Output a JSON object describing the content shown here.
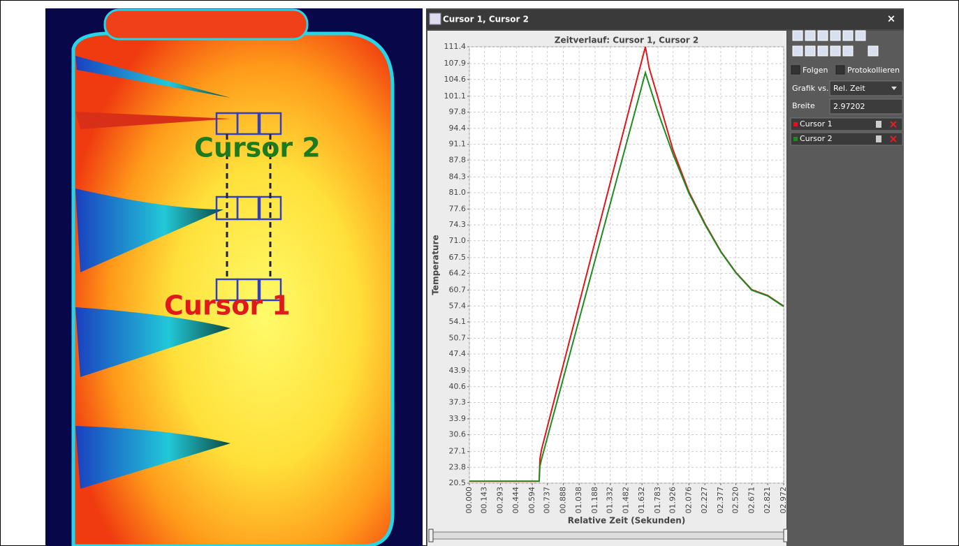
{
  "window": {
    "title": "Cursor 1, Cursor 2",
    "close": "×"
  },
  "thermal_image": {
    "labels": [
      "Cursor 2",
      "Cursor 1"
    ]
  },
  "panel": {
    "follow": "Folgen",
    "log": "Protokollieren",
    "graph_vs_label": "Grafik vs.",
    "graph_vs_value": "Rel. Zeit",
    "width_label": "Breite",
    "width_value": "2.97202"
  },
  "chart_data": {
    "type": "line",
    "title": "Zeitverlauf: Cursor 1, Cursor 2",
    "x_label": "Relative Zeit (Sekunden)",
    "y_label": "Temperature",
    "x": [
      0,
      0.3,
      0.66,
      0.667,
      0.68,
      0.8,
      1.0,
      1.2,
      1.4,
      1.6,
      1.664,
      1.7,
      1.783,
      1.926,
      2.076,
      2.227,
      2.377,
      2.52,
      2.671,
      2.821,
      2.972
    ],
    "series": [
      {
        "name": "Cursor 1",
        "color": "#e0151b",
        "values": [
          20.9,
          20.9,
          20.9,
          25.5,
          27.3,
          37.6,
          54.7,
          71.8,
          88.9,
          106.0,
          111.4,
          107.0,
          100.8,
          89.9,
          81.2,
          74.6,
          68.8,
          64.4,
          60.8,
          59.6,
          57.4
        ]
      },
      {
        "name": "Cursor 2",
        "color": "#1f8a1f",
        "values": [
          20.9,
          20.9,
          20.9,
          24.0,
          25.3,
          35.1,
          51.5,
          67.9,
          84.3,
          100.7,
          106.0,
          103.5,
          97.8,
          89.0,
          80.9,
          74.4,
          68.7,
          64.3,
          60.7,
          59.5,
          57.3
        ]
      }
    ],
    "xlim": [
      0,
      2.972
    ],
    "ylim": [
      20.5,
      111.4
    ],
    "xticks": [
      {
        "value": 0,
        "label": "00.000"
      },
      {
        "value": 0.143,
        "label": "00.143"
      },
      {
        "value": 0.293,
        "label": "00.293"
      },
      {
        "value": 0.444,
        "label": "00.444"
      },
      {
        "value": 0.594,
        "label": "00.594"
      },
      {
        "value": 0.737,
        "label": "00.737"
      },
      {
        "value": 0.888,
        "label": "00.888"
      },
      {
        "value": 1.038,
        "label": "01.038"
      },
      {
        "value": 1.188,
        "label": "01.188"
      },
      {
        "value": 1.332,
        "label": "01.332"
      },
      {
        "value": 1.482,
        "label": "01.482"
      },
      {
        "value": 1.632,
        "label": "01.632"
      },
      {
        "value": 1.783,
        "label": "01.783"
      },
      {
        "value": 1.926,
        "label": "01.926"
      },
      {
        "value": 2.076,
        "label": "02.076"
      },
      {
        "value": 2.227,
        "label": "02.227"
      },
      {
        "value": 2.377,
        "label": "02.377"
      },
      {
        "value": 2.52,
        "label": "02.520"
      },
      {
        "value": 2.671,
        "label": "02.671"
      },
      {
        "value": 2.821,
        "label": "02.821"
      },
      {
        "value": 2.972,
        "label": "02.972"
      }
    ],
    "yticks": [
      20.5,
      23.8,
      27.1,
      30.6,
      33.9,
      37.3,
      40.6,
      43.9,
      47.4,
      50.7,
      54.1,
      57.4,
      60.7,
      64.2,
      67.5,
      {
        "value": 71,
        "label": "71.0"
      },
      74.3,
      77.6,
      {
        "value": 81,
        "label": "81.0"
      },
      84.3,
      87.8,
      91.1,
      94.4,
      97.8,
      101.1,
      104.6,
      107.9,
      111.4
    ],
    "grid": true
  }
}
